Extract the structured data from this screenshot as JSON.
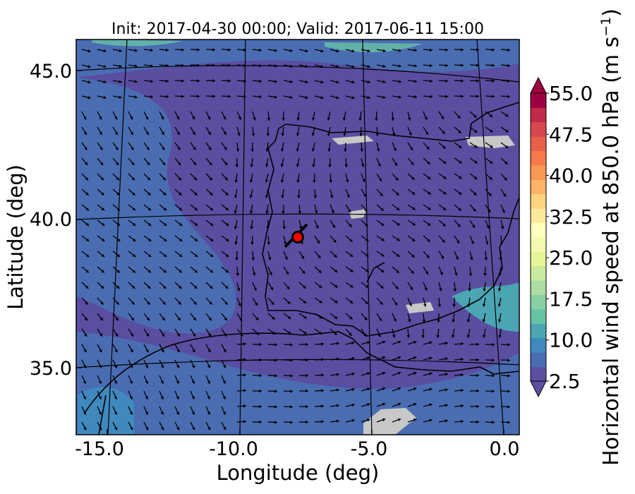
{
  "figure": {
    "title": "Init: 2017-04-30 00:00; Valid: 2017-06-11 15:00",
    "xlabel": "Longitude (deg)",
    "ylabel": "Latitude (deg)",
    "x_ticks": [
      "-15.0",
      "-10.0",
      "-5.0",
      "0.0"
    ],
    "y_ticks": [
      "45.0",
      "40.0",
      "35.0"
    ],
    "colorbar": {
      "label_main": "Horizontal wind speed at 850.0 hPa (m s",
      "label_exp": "−1",
      "label_close": ")",
      "ticks": [
        "55.0",
        "47.5",
        "40.0",
        "32.5",
        "25.0",
        "17.5",
        "10.0",
        "2.5"
      ],
      "min": 2.5,
      "max": 55.0,
      "extend": "both",
      "colors": [
        "#5e4fa2",
        "#4a6db2",
        "#3f89be",
        "#4ba5b2",
        "#66c2a5",
        "#88d0a4",
        "#abdda4",
        "#c9e99e",
        "#e6f598",
        "#f4fab0",
        "#fffebe",
        "#fee99a",
        "#fed481",
        "#fdb465",
        "#fa9856",
        "#f67a49",
        "#e8604a",
        "#d8474d",
        "#c2294a",
        "#9e0142"
      ]
    },
    "background_color": "#5a4ea1",
    "marker": {
      "lon": -7.7,
      "lat": 39.4,
      "color": "#ff0000"
    }
  }
}
